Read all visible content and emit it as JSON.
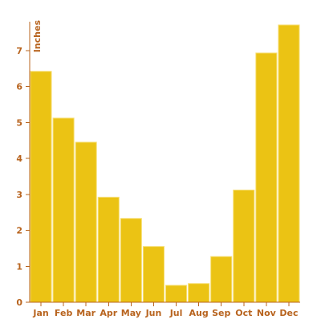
{
  "chart_data": {
    "type": "bar",
    "categories": [
      "Jan",
      "Feb",
      "Mar",
      "Apr",
      "May",
      "Jun",
      "Jul",
      "Aug",
      "Sep",
      "Oct",
      "Nov",
      "Dec"
    ],
    "values": [
      6.42,
      5.12,
      4.45,
      2.92,
      2.33,
      1.55,
      0.47,
      0.52,
      1.27,
      3.12,
      6.93,
      7.71
    ],
    "title": "",
    "xlabel": "",
    "ylabel": "Inches",
    "ylim": [
      0,
      7.8
    ],
    "yticks": [
      0,
      1,
      2,
      3,
      4,
      5,
      6,
      7
    ],
    "grid": false,
    "colors": {
      "bar": "#ebc314",
      "bar_stroke": "#f7df77",
      "axis": "#b8641f"
    }
  }
}
